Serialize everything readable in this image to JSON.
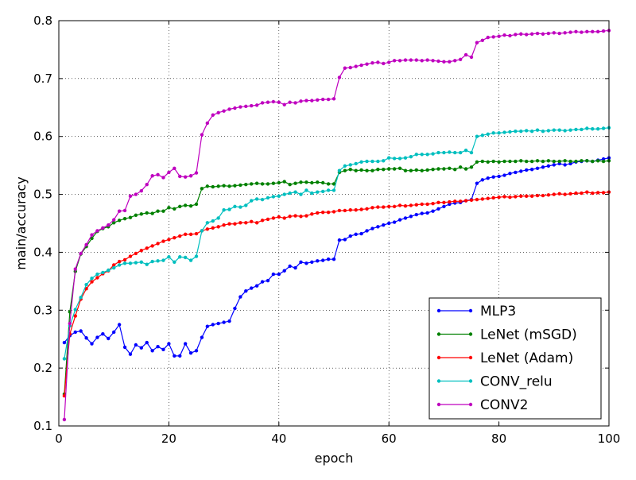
{
  "chart_data": {
    "type": "line",
    "title": "",
    "xlabel": "epoch",
    "ylabel": "main/accuracy",
    "xlim": [
      0,
      100
    ],
    "ylim": [
      0.1,
      0.8
    ],
    "xticks": [
      0,
      20,
      40,
      60,
      80,
      100
    ],
    "yticks": [
      0.1,
      0.2,
      0.3,
      0.4,
      0.5,
      0.6,
      0.7,
      0.8
    ],
    "grid": true,
    "legend_position": "bottom-right",
    "x": [
      1,
      2,
      3,
      4,
      5,
      6,
      7,
      8,
      9,
      10,
      11,
      12,
      13,
      14,
      15,
      16,
      17,
      18,
      19,
      20,
      21,
      22,
      23,
      24,
      25,
      26,
      27,
      28,
      29,
      30,
      31,
      32,
      33,
      34,
      35,
      36,
      37,
      38,
      39,
      40,
      41,
      42,
      43,
      44,
      45,
      46,
      47,
      48,
      49,
      50,
      51,
      52,
      53,
      54,
      55,
      56,
      57,
      58,
      59,
      60,
      61,
      62,
      63,
      64,
      65,
      66,
      67,
      68,
      69,
      70,
      71,
      72,
      73,
      74,
      75,
      76,
      77,
      78,
      79,
      80,
      81,
      82,
      83,
      84,
      85,
      86,
      87,
      88,
      89,
      90,
      91,
      92,
      93,
      94,
      95,
      96,
      97,
      98,
      99,
      100
    ],
    "series": [
      {
        "name": "MLP3",
        "color": "#0000ff",
        "values": [
          0.244,
          0.256,
          0.262,
          0.264,
          0.252,
          0.242,
          0.253,
          0.259,
          0.251,
          0.262,
          0.275,
          0.236,
          0.224,
          0.24,
          0.235,
          0.244,
          0.23,
          0.237,
          0.232,
          0.242,
          0.221,
          0.221,
          0.242,
          0.226,
          0.23,
          0.253,
          0.272,
          0.275,
          0.277,
          0.279,
          0.281,
          0.303,
          0.323,
          0.333,
          0.338,
          0.342,
          0.349,
          0.351,
          0.362,
          0.362,
          0.368,
          0.376,
          0.373,
          0.383,
          0.381,
          0.383,
          0.385,
          0.386,
          0.388,
          0.388,
          0.421,
          0.422,
          0.428,
          0.431,
          0.432,
          0.437,
          0.441,
          0.444,
          0.447,
          0.45,
          0.452,
          0.456,
          0.459,
          0.462,
          0.465,
          0.467,
          0.468,
          0.471,
          0.475,
          0.479,
          0.483,
          0.485,
          0.486,
          0.489,
          0.491,
          0.519,
          0.525,
          0.528,
          0.53,
          0.531,
          0.533,
          0.536,
          0.538,
          0.54,
          0.542,
          0.543,
          0.545,
          0.547,
          0.549,
          0.551,
          0.553,
          0.551,
          0.553,
          0.556,
          0.557,
          0.558,
          0.557,
          0.559,
          0.561,
          0.563
        ]
      },
      {
        "name": "LeNet (mSGD)",
        "color": "#008000",
        "values": [
          0.155,
          0.297,
          0.367,
          0.397,
          0.41,
          0.424,
          0.436,
          0.441,
          0.444,
          0.451,
          0.455,
          0.458,
          0.46,
          0.464,
          0.466,
          0.468,
          0.467,
          0.471,
          0.471,
          0.477,
          0.475,
          0.479,
          0.481,
          0.48,
          0.483,
          0.51,
          0.514,
          0.513,
          0.514,
          0.515,
          0.514,
          0.515,
          0.516,
          0.517,
          0.518,
          0.519,
          0.518,
          0.518,
          0.519,
          0.52,
          0.522,
          0.517,
          0.519,
          0.521,
          0.521,
          0.52,
          0.521,
          0.52,
          0.518,
          0.518,
          0.538,
          0.541,
          0.543,
          0.541,
          0.542,
          0.541,
          0.541,
          0.543,
          0.543,
          0.544,
          0.544,
          0.545,
          0.541,
          0.541,
          0.542,
          0.541,
          0.542,
          0.543,
          0.544,
          0.544,
          0.545,
          0.543,
          0.547,
          0.544,
          0.547,
          0.556,
          0.557,
          0.556,
          0.557,
          0.556,
          0.557,
          0.557,
          0.557,
          0.558,
          0.557,
          0.557,
          0.558,
          0.557,
          0.558,
          0.557,
          0.557,
          0.558,
          0.557,
          0.557,
          0.558,
          0.558,
          0.557,
          0.558,
          0.557,
          0.558
        ]
      },
      {
        "name": "LeNet (Adam)",
        "color": "#ff0000",
        "values": [
          0.152,
          0.259,
          0.29,
          0.319,
          0.337,
          0.349,
          0.356,
          0.363,
          0.368,
          0.378,
          0.384,
          0.387,
          0.393,
          0.398,
          0.403,
          0.407,
          0.411,
          0.415,
          0.419,
          0.422,
          0.425,
          0.428,
          0.431,
          0.431,
          0.432,
          0.437,
          0.44,
          0.442,
          0.444,
          0.447,
          0.449,
          0.449,
          0.451,
          0.451,
          0.453,
          0.451,
          0.455,
          0.457,
          0.459,
          0.461,
          0.459,
          0.462,
          0.463,
          0.462,
          0.463,
          0.466,
          0.468,
          0.469,
          0.469,
          0.47,
          0.472,
          0.472,
          0.473,
          0.473,
          0.474,
          0.475,
          0.477,
          0.478,
          0.478,
          0.479,
          0.479,
          0.481,
          0.48,
          0.481,
          0.482,
          0.483,
          0.483,
          0.484,
          0.486,
          0.486,
          0.487,
          0.488,
          0.488,
          0.489,
          0.49,
          0.491,
          0.492,
          0.493,
          0.494,
          0.495,
          0.496,
          0.495,
          0.496,
          0.497,
          0.497,
          0.497,
          0.498,
          0.498,
          0.499,
          0.5,
          0.501,
          0.5,
          0.501,
          0.502,
          0.502,
          0.504,
          0.502,
          0.503,
          0.503,
          0.504
        ]
      },
      {
        "name": "CONV_relu",
        "color": "#00bfbf",
        "values": [
          0.216,
          0.273,
          0.301,
          0.322,
          0.344,
          0.355,
          0.362,
          0.365,
          0.369,
          0.373,
          0.378,
          0.381,
          0.381,
          0.382,
          0.383,
          0.379,
          0.384,
          0.385,
          0.386,
          0.392,
          0.383,
          0.392,
          0.391,
          0.386,
          0.393,
          0.437,
          0.451,
          0.454,
          0.459,
          0.473,
          0.474,
          0.479,
          0.478,
          0.481,
          0.489,
          0.492,
          0.491,
          0.494,
          0.496,
          0.497,
          0.5,
          0.502,
          0.504,
          0.5,
          0.507,
          0.502,
          0.504,
          0.505,
          0.507,
          0.507,
          0.541,
          0.549,
          0.551,
          0.553,
          0.556,
          0.557,
          0.557,
          0.557,
          0.558,
          0.563,
          0.562,
          0.562,
          0.563,
          0.565,
          0.569,
          0.569,
          0.569,
          0.57,
          0.572,
          0.572,
          0.573,
          0.572,
          0.572,
          0.576,
          0.572,
          0.6,
          0.602,
          0.604,
          0.606,
          0.606,
          0.607,
          0.608,
          0.609,
          0.609,
          0.61,
          0.609,
          0.611,
          0.609,
          0.61,
          0.611,
          0.611,
          0.61,
          0.611,
          0.612,
          0.612,
          0.614,
          0.613,
          0.613,
          0.614,
          0.615
        ]
      },
      {
        "name": "CONV2",
        "color": "#bf00bf",
        "values": [
          0.111,
          0.277,
          0.371,
          0.398,
          0.413,
          0.43,
          0.437,
          0.442,
          0.447,
          0.456,
          0.471,
          0.472,
          0.497,
          0.5,
          0.506,
          0.517,
          0.532,
          0.534,
          0.529,
          0.538,
          0.545,
          0.531,
          0.53,
          0.532,
          0.537,
          0.603,
          0.623,
          0.637,
          0.641,
          0.644,
          0.647,
          0.649,
          0.651,
          0.652,
          0.653,
          0.654,
          0.658,
          0.659,
          0.66,
          0.659,
          0.655,
          0.659,
          0.658,
          0.661,
          0.662,
          0.662,
          0.663,
          0.664,
          0.664,
          0.665,
          0.702,
          0.718,
          0.719,
          0.721,
          0.723,
          0.725,
          0.727,
          0.728,
          0.726,
          0.728,
          0.731,
          0.731,
          0.732,
          0.732,
          0.732,
          0.731,
          0.732,
          0.731,
          0.73,
          0.729,
          0.729,
          0.731,
          0.733,
          0.741,
          0.737,
          0.762,
          0.766,
          0.771,
          0.772,
          0.773,
          0.775,
          0.774,
          0.776,
          0.777,
          0.776,
          0.777,
          0.778,
          0.777,
          0.778,
          0.779,
          0.778,
          0.779,
          0.78,
          0.781,
          0.78,
          0.781,
          0.781,
          0.781,
          0.782,
          0.783
        ]
      }
    ]
  }
}
